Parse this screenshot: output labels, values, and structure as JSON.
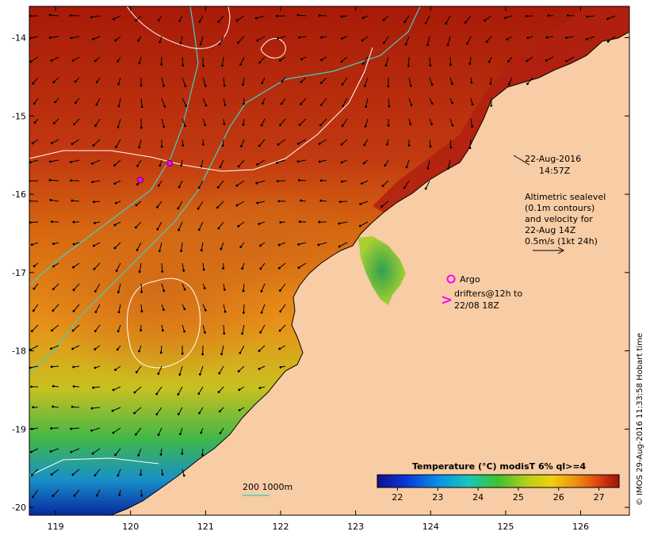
{
  "map": {
    "lon_ticks": [
      "119",
      "120",
      "121",
      "122",
      "123",
      "124",
      "125",
      "126"
    ],
    "lat_ticks": [
      "-14",
      "-15",
      "-16",
      "-17",
      "-18",
      "-19",
      "-20"
    ],
    "lon_range": [
      118.65,
      126.65
    ],
    "lat_range": [
      -20.1,
      -13.6
    ],
    "land_color": "#f8cca4",
    "frame_color": "#000000"
  },
  "annotations": {
    "date": "22-Aug-2016",
    "time": "14:57Z",
    "alti_line1": "Altimetric sealevel",
    "alti_line2": "(0.1m contours)",
    "alti_line3": "and velocity for",
    "alti_line4": "22-Aug 14Z",
    "alti_line5": "0.5m/s (1kt 24h)",
    "argo_label": "Argo",
    "argo_symbol_color": "#ff00ff",
    "drifter_symbol": ">",
    "drifter_line1": "drifters@12h to",
    "drifter_line2": "22/08 18Z",
    "contour_label": "200  1000m",
    "credit": "© IMOS 29-Aug-2016 11:33:58 Hobart time"
  },
  "colorbar": {
    "title": "Temperature (°C) modisT 6% ql>=4",
    "tick_labels": [
      "22",
      "23",
      "24",
      "25",
      "26",
      "27"
    ],
    "range": [
      21.5,
      27.5
    ]
  }
}
